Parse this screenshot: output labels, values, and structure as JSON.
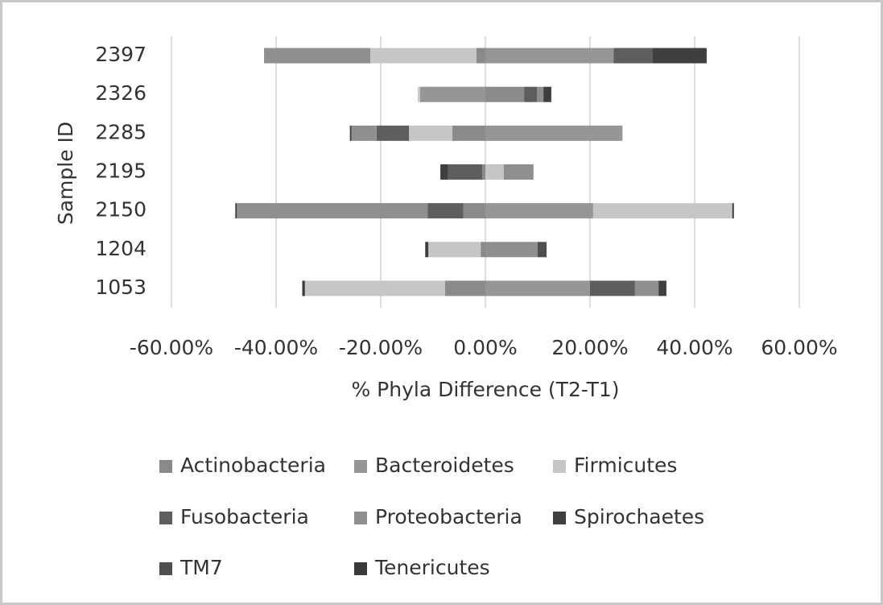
{
  "chart_data": {
    "type": "bar",
    "orientation": "horizontal",
    "stacked": true,
    "xlabel": "% Phyla Difference (T2-T1)",
    "ylabel": "Sample ID",
    "categories": [
      "1053",
      "1204",
      "2150",
      "2195",
      "2285",
      "2326",
      "2397"
    ],
    "series": [
      {
        "name": "Actinobacteria",
        "color": "#8a8a8a",
        "values": [
          -7.7,
          -0.9,
          -4.2,
          -0.6,
          -6.3,
          7.4,
          -1.7
        ]
      },
      {
        "name": "Bacteroidetes",
        "color": "#969696",
        "values": [
          20,
          0,
          20.6,
          0,
          26.2,
          -12.5,
          24.5
        ]
      },
      {
        "name": "Firmicutes",
        "color": "#c6c6c6",
        "values": [
          -26.8,
          -10,
          26.6,
          3.5,
          -8.3,
          -0.4,
          -20.3
        ]
      },
      {
        "name": "Fusobacteria",
        "color": "#5e5e5e",
        "values": [
          8.6,
          0,
          -6.8,
          -6.5,
          -6.2,
          2.5,
          7.5
        ]
      },
      {
        "name": "Proteobacteria",
        "color": "#8f8f8f",
        "values": [
          4.5,
          10,
          -36.5,
          5.7,
          -4.8,
          1.2,
          -20.3
        ]
      },
      {
        "name": "Spirochaetes",
        "color": "#3f3f3f",
        "values": [
          1.5,
          -0.6,
          -0.3,
          -1.5,
          -0.3,
          1.5,
          10.3
        ]
      },
      {
        "name": "TM7",
        "color": "#4f4f4f",
        "values": [
          0,
          1.7,
          0,
          0,
          0,
          0,
          0
        ]
      },
      {
        "name": "Tenericutes",
        "color": "#3a3a3a",
        "values": [
          -0.5,
          0,
          0.3,
          0,
          0,
          0,
          0
        ]
      }
    ],
    "xlim": [
      -60,
      60
    ],
    "xticks": [
      {
        "value": -60,
        "label": "-60.00%"
      },
      {
        "value": -40,
        "label": "-40.00%"
      },
      {
        "value": -20,
        "label": "-20.00%"
      },
      {
        "value": 0,
        "label": "0.00%"
      },
      {
        "value": 20,
        "label": "20.00%"
      },
      {
        "value": 40,
        "label": "40.00%"
      },
      {
        "value": 60,
        "label": "60.00%"
      }
    ],
    "grid": true,
    "legend": "bottom"
  }
}
